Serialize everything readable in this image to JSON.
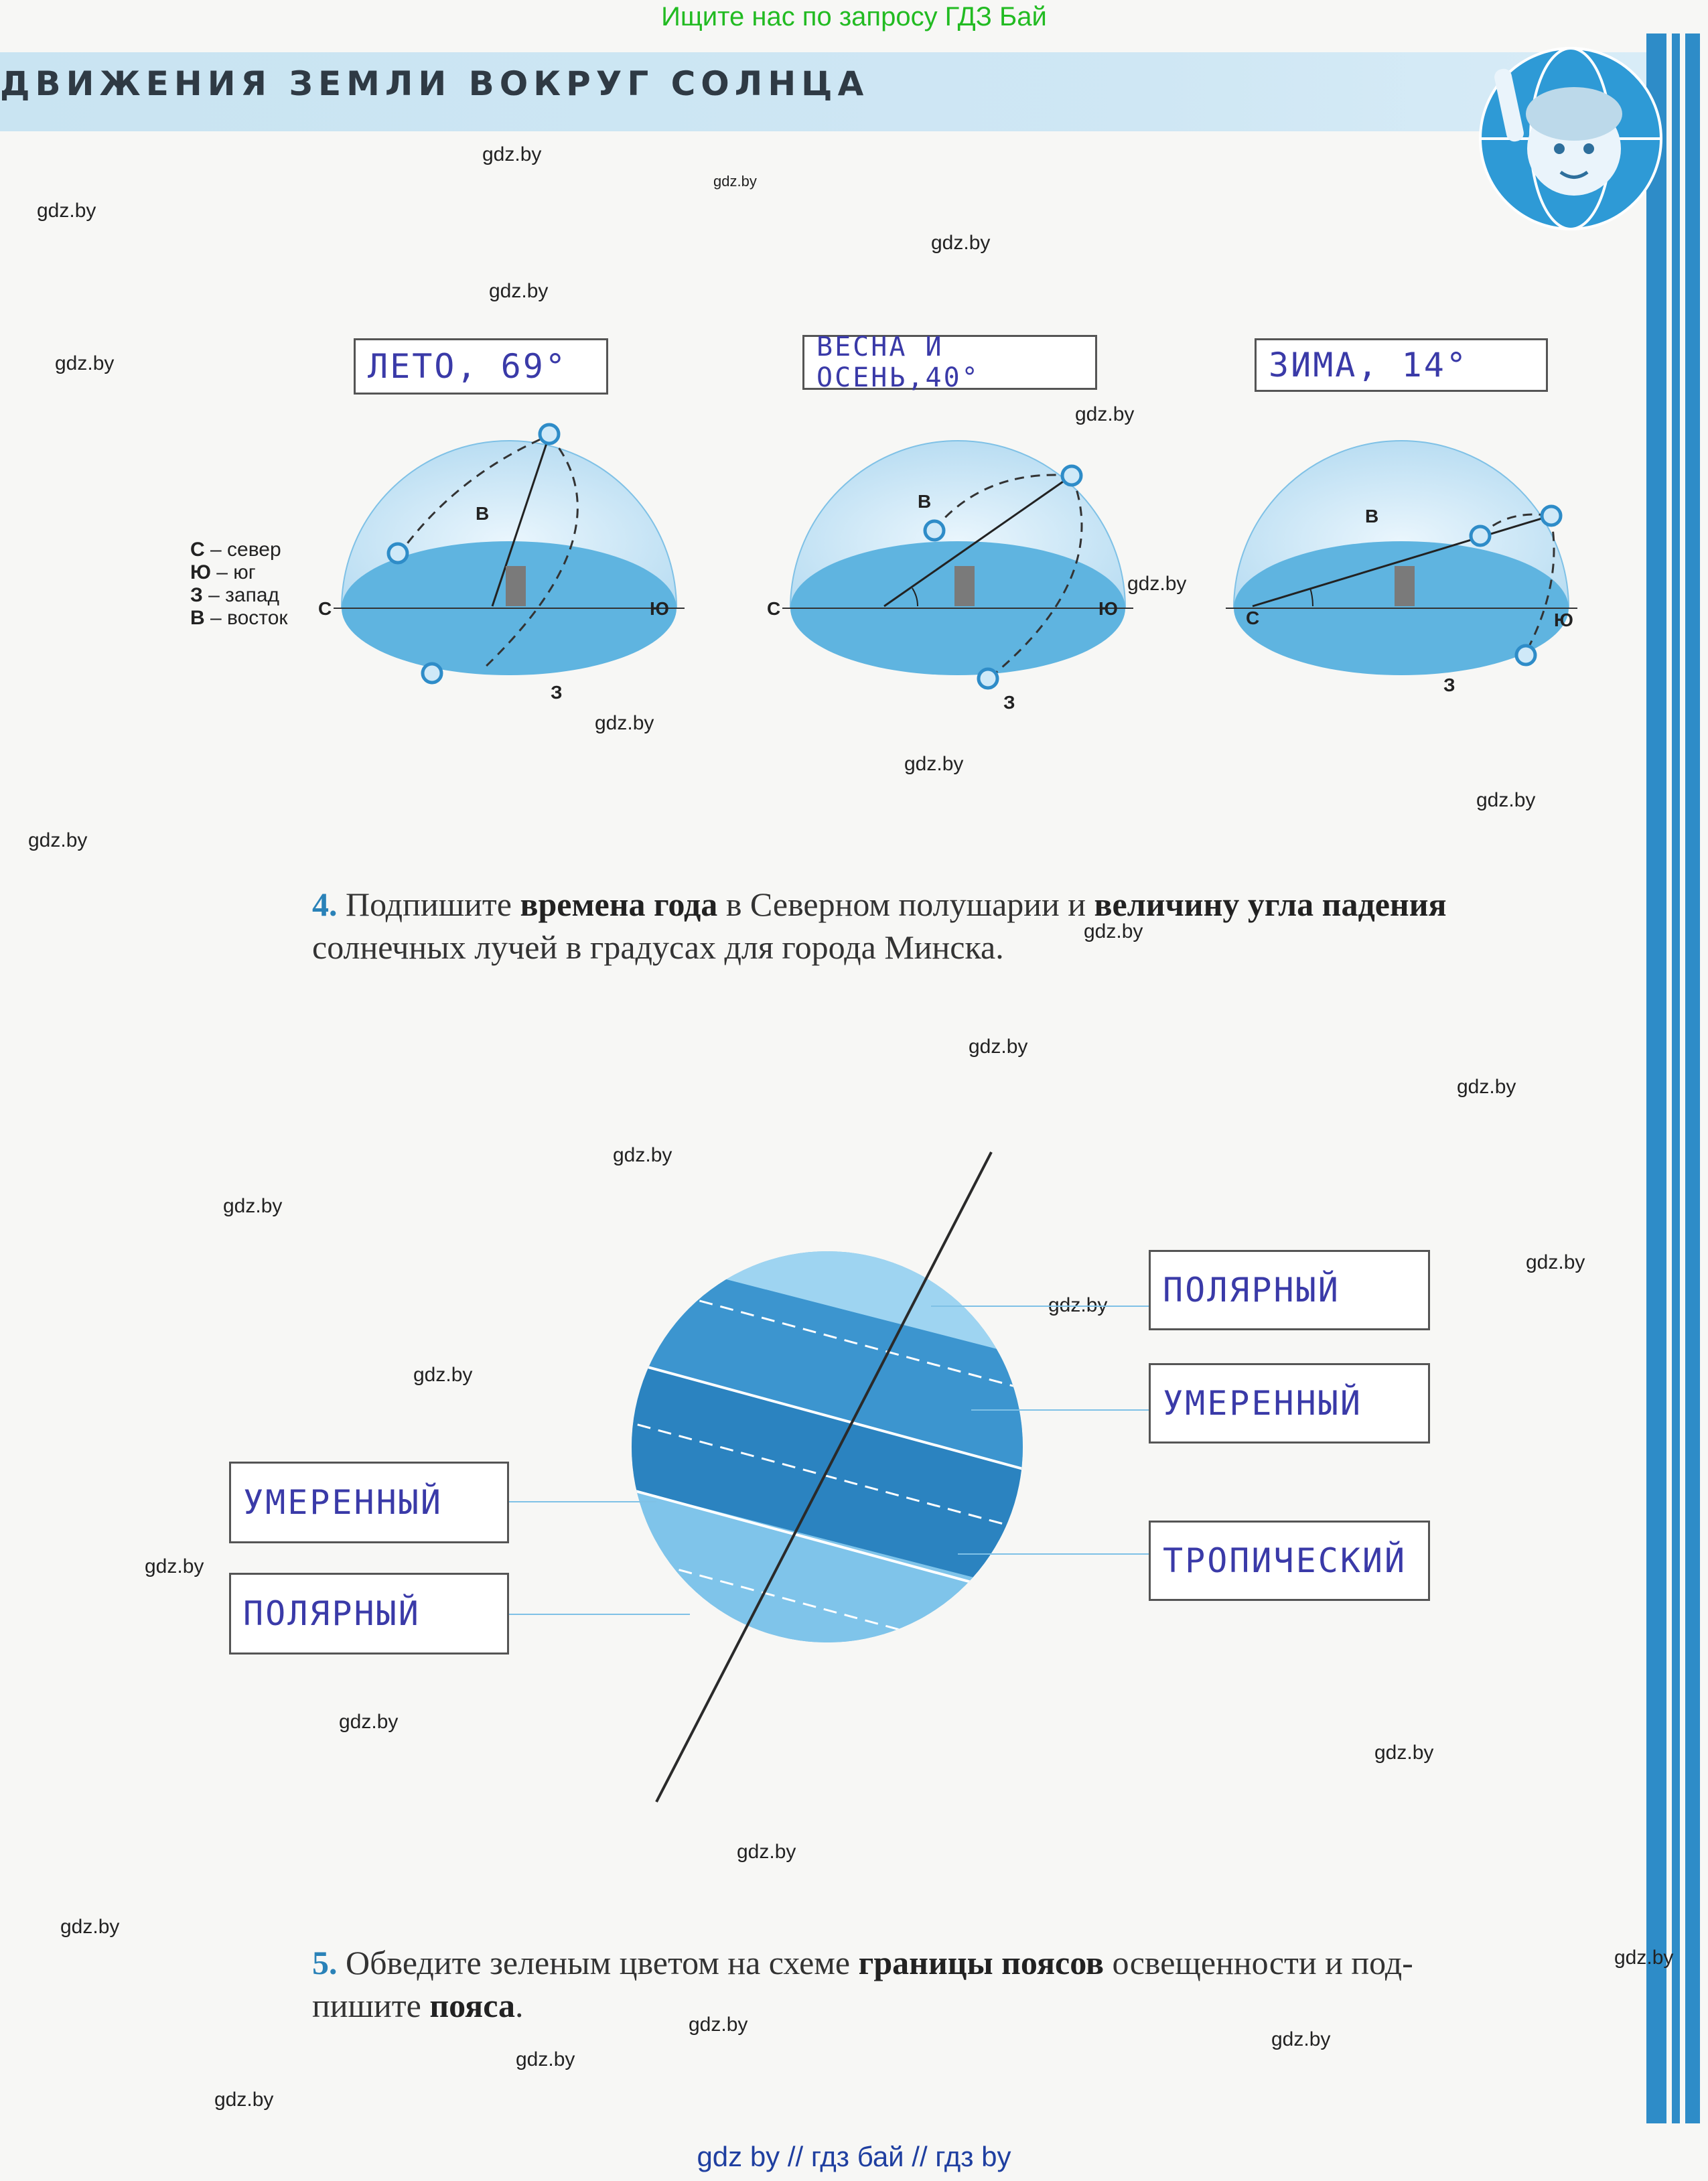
{
  "banner": "Ищите нас по запросу ГДЗ Бай",
  "header": {
    "title": "ДВИЖЕНИЯ ЗЕМЛИ ВОКРУГ СОЛНЦА"
  },
  "watermark": "gdz.by",
  "seasons": [
    {
      "label": "ЛЕТО, 69°"
    },
    {
      "label": "ВЕСНА И ОСЕНЬ,40°"
    },
    {
      "label": "ЗИМА, 14°"
    }
  ],
  "directions": {
    "north": "С",
    "south": "Ю",
    "west": "З",
    "east": "В"
  },
  "legend": [
    {
      "letter": "С",
      "text": " – север"
    },
    {
      "letter": "Ю",
      "text": " – юг"
    },
    {
      "letter": "З",
      "text": " – запад"
    },
    {
      "letter": "В",
      "text": " – восток"
    }
  ],
  "task4": {
    "num": "4.",
    "part1": " Подпишите ",
    "bold1": "времена года",
    "part2": " в Северном полушарии и ",
    "bold2": "величину угла падения",
    "part3": "солнечных лучей в градусах для города Минска."
  },
  "zones": {
    "right": [
      "ПОЛЯРНЫЙ",
      "УМЕРЕННЫЙ",
      "ТРОПИЧЕСКИЙ"
    ],
    "left": [
      "УМЕРЕННЫЙ",
      "ПОЛЯРНЫЙ"
    ]
  },
  "task5": {
    "num": "5.",
    "part1": " Обведите зеленым цветом на схеме ",
    "bold1": "границы поясов",
    "part2": " освещенности и под-",
    "part3": "пишите ",
    "bold2": "пояса",
    "part4": "."
  },
  "footer": "gdz by  //  гдз бай  //  гдз by",
  "colors": {
    "accent": "#2a82b8",
    "hemisphere": "#5fb4e0",
    "stripe": "#2e8cc8",
    "handwriting": "#3a3aa8"
  }
}
